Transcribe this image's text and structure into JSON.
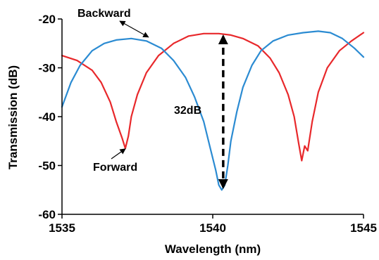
{
  "chart_data": {
    "type": "line",
    "title": "",
    "xlabel": "Wavelength (nm)",
    "ylabel": "Transmission (dB)",
    "xlim": [
      1535,
      1545
    ],
    "ylim": [
      -60,
      -20
    ],
    "xticks": [
      1535,
      1540,
      1545
    ],
    "yticks": [
      -60,
      -50,
      -40,
      -30,
      -20
    ],
    "grid": false,
    "legend": "none",
    "series": [
      {
        "label": "Forward",
        "color": "#e8282b",
        "x": [
          1535.0,
          1535.5,
          1536.0,
          1536.3,
          1536.6,
          1536.8,
          1537.0,
          1537.1,
          1537.2,
          1537.3,
          1537.5,
          1537.8,
          1538.2,
          1538.7,
          1539.2,
          1539.7,
          1540.2,
          1540.6,
          1541.0,
          1541.5,
          1541.9,
          1542.2,
          1542.5,
          1542.7,
          1542.85,
          1542.95,
          1543.05,
          1543.15,
          1543.3,
          1543.5,
          1543.8,
          1544.2,
          1544.6,
          1545.0
        ],
        "y": [
          -27.5,
          -28.5,
          -30.5,
          -33.0,
          -37.0,
          -41.0,
          -44.5,
          -46.5,
          -44.0,
          -40.0,
          -35.5,
          -31.0,
          -27.5,
          -25.0,
          -23.5,
          -23.0,
          -23.0,
          -23.3,
          -24.0,
          -25.5,
          -28.0,
          -31.0,
          -35.5,
          -40.0,
          -45.5,
          -49.0,
          -46.0,
          -47.0,
          -41.0,
          -35.0,
          -30.0,
          -26.5,
          -24.5,
          -22.8
        ]
      },
      {
        "label": "Backward",
        "color": "#2b8bd2",
        "x": [
          1535.0,
          1535.3,
          1535.6,
          1536.0,
          1536.4,
          1536.8,
          1537.3,
          1537.8,
          1538.3,
          1538.7,
          1539.1,
          1539.4,
          1539.7,
          1539.9,
          1540.1,
          1540.2,
          1540.3,
          1540.4,
          1540.5,
          1540.6,
          1540.8,
          1541.0,
          1541.3,
          1541.6,
          1542.0,
          1542.5,
          1543.0,
          1543.5,
          1543.9,
          1544.3,
          1544.7,
          1545.0
        ],
        "y": [
          -38.0,
          -33.0,
          -29.5,
          -26.5,
          -25.0,
          -24.3,
          -24.0,
          -24.5,
          -26.0,
          -28.5,
          -32.0,
          -36.0,
          -41.0,
          -46.0,
          -51.0,
          -54.0,
          -55.0,
          -54.0,
          -50.0,
          -45.0,
          -39.0,
          -34.0,
          -29.5,
          -26.5,
          -24.5,
          -23.3,
          -22.8,
          -22.5,
          -22.8,
          -24.0,
          -26.0,
          -27.8
        ]
      }
    ],
    "annotations": [
      {
        "text": "Backward",
        "arrow_to": [
          1537.8,
          -24.3
        ]
      },
      {
        "text": "Forward",
        "arrow_to": [
          1537.15,
          -46.0
        ]
      },
      {
        "text": "32dB",
        "span_x": 1540.3,
        "span_y": [
          -23.0,
          -55.0
        ]
      }
    ]
  }
}
